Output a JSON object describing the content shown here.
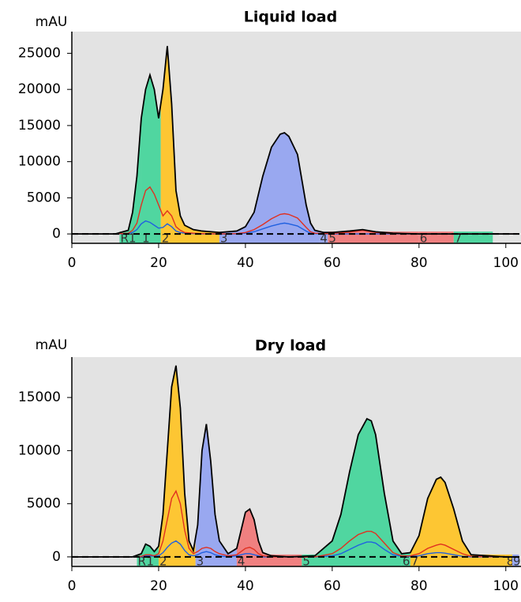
{
  "chart_data": [
    {
      "type": "line",
      "title": "Liquid load",
      "y_label": "mAU",
      "x": [
        0,
        10,
        13,
        14,
        15,
        16,
        17,
        18,
        19,
        20,
        21,
        22,
        23,
        24,
        25,
        26,
        28,
        30,
        34,
        38,
        40,
        42,
        44,
        46,
        48,
        49,
        50,
        52,
        54,
        55,
        56,
        58,
        60,
        64,
        67,
        70,
        74,
        80,
        90,
        100,
        103
      ],
      "series": [
        {
          "color": "#000000",
          "values": [
            0,
            0,
            500,
            3000,
            8000,
            16000,
            20000,
            22000,
            20000,
            16000,
            20000,
            26000,
            18000,
            6000,
            2500,
            1200,
            600,
            400,
            200,
            400,
            1000,
            3000,
            8000,
            12000,
            13800,
            14000,
            13500,
            11000,
            4000,
            1500,
            500,
            200,
            200,
            400,
            600,
            300,
            100,
            0,
            0,
            0,
            0
          ]
        },
        {
          "color": "#e03020",
          "values": [
            0,
            0,
            100,
            500,
            1500,
            4000,
            6000,
            6500,
            5500,
            4000,
            2500,
            3200,
            2500,
            1000,
            500,
            200,
            100,
            50,
            0,
            50,
            200,
            600,
            1300,
            2100,
            2700,
            2800,
            2700,
            2200,
            900,
            300,
            100,
            50,
            50,
            250,
            500,
            200,
            50,
            0,
            0,
            0,
            0
          ]
        },
        {
          "color": "#2060e0",
          "values": [
            0,
            0,
            50,
            200,
            600,
            1400,
            1800,
            1600,
            1200,
            800,
            900,
            1400,
            1000,
            400,
            200,
            100,
            50,
            0,
            0,
            0,
            100,
            300,
            700,
            1100,
            1400,
            1500,
            1400,
            1100,
            400,
            100,
            50,
            0,
            0,
            0,
            0,
            0,
            0,
            0,
            0,
            0,
            0
          ]
        }
      ],
      "fractions": [
        {
          "label": "R1",
          "start": 11,
          "end": 16,
          "color": "#50d6a0"
        },
        {
          "label": "1",
          "start": 16,
          "end": 20.5,
          "color": "#50d6a0"
        },
        {
          "label": "2",
          "start": 20.5,
          "end": 34,
          "color": "#fdc633"
        },
        {
          "label": "3",
          "start": 34,
          "end": 57,
          "color": "#99a8f0"
        },
        {
          "label": "4",
          "start": 57,
          "end": 59,
          "color": "#99a8f0"
        },
        {
          "label": "5",
          "start": 59,
          "end": 80,
          "color": "#f08080"
        },
        {
          "label": "6",
          "start": 80,
          "end": 88,
          "color": "#f08080"
        },
        {
          "label": "7",
          "start": 88,
          "end": 97,
          "color": "#50d6a0"
        }
      ],
      "xlim": [
        0,
        103.5
      ],
      "ylim": [
        -1300,
        28000
      ],
      "xticks": [
        0,
        20,
        40,
        60,
        80,
        100
      ],
      "yticks": [
        0,
        5000,
        10000,
        15000,
        20000,
        25000
      ]
    },
    {
      "type": "line",
      "title": "Dry load",
      "y_label": "mAU",
      "x": [
        0,
        14,
        16,
        17,
        18,
        19,
        20,
        21,
        22,
        23,
        24,
        25,
        26,
        27,
        28,
        29,
        30,
        31,
        32,
        33,
        34,
        36,
        38,
        39,
        40,
        41,
        42,
        43,
        44,
        46,
        50,
        56,
        60,
        62,
        64,
        66,
        68,
        69,
        70,
        72,
        74,
        76,
        78,
        80,
        82,
        84,
        85,
        86,
        88,
        90,
        92,
        100,
        103
      ],
      "series": [
        {
          "color": "#000000",
          "values": [
            0,
            0,
            300,
            1200,
            1000,
            500,
            1000,
            4000,
            10000,
            16000,
            18000,
            14000,
            6000,
            1500,
            600,
            3000,
            10000,
            12500,
            9000,
            4000,
            1500,
            300,
            800,
            2500,
            4200,
            4500,
            3500,
            1500,
            400,
            100,
            0,
            100,
            1500,
            4000,
            8000,
            11500,
            13000,
            12800,
            11500,
            6000,
            1500,
            300,
            400,
            2000,
            5500,
            7300,
            7500,
            7000,
            4500,
            1500,
            200,
            0,
            0
          ]
        },
        {
          "color": "#e03020",
          "values": [
            0,
            0,
            50,
            200,
            200,
            100,
            300,
            1500,
            3500,
            5500,
            6200,
            5000,
            2500,
            800,
            300,
            500,
            800,
            900,
            800,
            500,
            300,
            100,
            200,
            500,
            800,
            900,
            700,
            300,
            100,
            0,
            0,
            0,
            300,
            800,
            1500,
            2100,
            2400,
            2400,
            2200,
            1300,
            400,
            100,
            100,
            300,
            800,
            1100,
            1200,
            1100,
            700,
            300,
            50,
            0,
            0
          ]
        },
        {
          "color": "#2060e0",
          "values": [
            0,
            0,
            20,
            100,
            100,
            50,
            100,
            400,
            900,
            1300,
            1500,
            1200,
            600,
            200,
            100,
            200,
            400,
            500,
            400,
            200,
            100,
            0,
            100,
            200,
            300,
            300,
            200,
            100,
            0,
            0,
            0,
            0,
            100,
            300,
            700,
            1100,
            1400,
            1400,
            1300,
            700,
            200,
            50,
            50,
            100,
            300,
            400,
            400,
            350,
            200,
            50,
            0,
            0,
            0
          ]
        }
      ],
      "fractions": [
        {
          "label": "R1",
          "start": 15,
          "end": 17,
          "color": "#50d6a0"
        },
        {
          "label": "1",
          "start": 17,
          "end": 20,
          "color": "#50d6a0"
        },
        {
          "label": "2",
          "start": 20,
          "end": 28.5,
          "color": "#fdc633"
        },
        {
          "label": "3",
          "start": 28.5,
          "end": 38,
          "color": "#99a8f0"
        },
        {
          "label": "4",
          "start": 38,
          "end": 53,
          "color": "#f08080"
        },
        {
          "label": "5",
          "start": 53,
          "end": 76,
          "color": "#50d6a0"
        },
        {
          "label": "6",
          "start": 76,
          "end": 78,
          "color": "#50d6a0"
        },
        {
          "label": "7",
          "start": 78,
          "end": 100,
          "color": "#fdc633"
        },
        {
          "label": "8",
          "start": 100,
          "end": 101.5,
          "color": "#fdc633"
        },
        {
          "label": "9",
          "start": 101.5,
          "end": 103,
          "color": "#99a8f0"
        }
      ],
      "xlim": [
        0,
        103.5
      ],
      "ylim": [
        -900,
        18800
      ],
      "xticks": [
        0,
        20,
        40,
        60,
        80,
        100
      ],
      "yticks": [
        0,
        5000,
        10000,
        15000
      ]
    }
  ]
}
